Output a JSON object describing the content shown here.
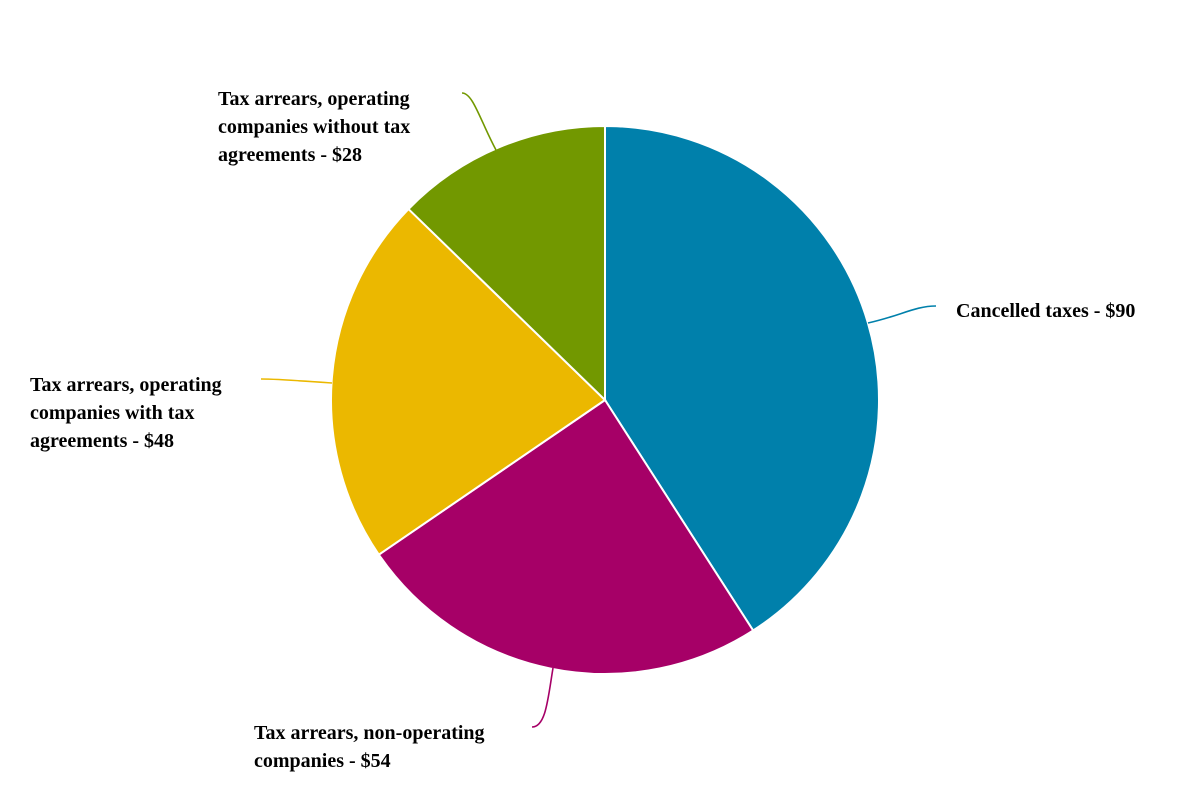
{
  "chart_data": {
    "type": "pie",
    "title": "",
    "slices": [
      {
        "label": "Cancelled taxes",
        "value": 90,
        "display": "Cancelled taxes - $90",
        "color": "#0080AB"
      },
      {
        "label": "Tax arrears, non-operating companies",
        "value": 54,
        "display": "Tax arrears, non-operating companies - $54",
        "color": "#A60067"
      },
      {
        "label": "Tax arrears, operating companies with tax agreements",
        "value": 48,
        "display": "Tax arrears, operating companies with tax agreements - $48",
        "color": "#EBB800"
      },
      {
        "label": "Tax arrears, operating companies without tax agreements",
        "value": 28,
        "display": "Tax arrears, operating companies without tax agreements - $28",
        "color": "#729800"
      }
    ]
  },
  "labels": {
    "cancelled": [
      "Cancelled taxes - $90"
    ],
    "non_operating": [
      "Tax arrears, non-operating",
      "companies - $54"
    ],
    "with_agreements": [
      "Tax arrears, operating",
      "companies with tax",
      "agreements - $48"
    ],
    "without_agreements": [
      "Tax arrears, operating",
      "companies without tax",
      "agreements - $28"
    ]
  }
}
